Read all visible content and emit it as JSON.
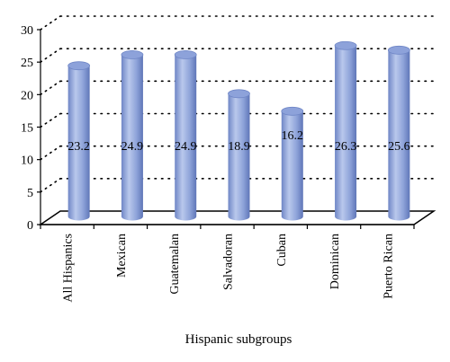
{
  "chart_data": {
    "type": "bar",
    "title": "",
    "xlabel": "Hispanic subgroups",
    "ylabel": "",
    "ylim": [
      0,
      30
    ],
    "yticks": [
      0,
      5,
      10,
      15,
      20,
      25,
      30
    ],
    "grid": true,
    "categories": [
      "All Hispanics",
      "Mexican",
      "Guatemalan",
      "Salvadoran",
      "Cuban",
      "Dominican",
      "Puerto Rican"
    ],
    "values": [
      23.2,
      24.9,
      24.9,
      18.9,
      16.2,
      26.3,
      25.6
    ],
    "value_labels": [
      "23.2",
      "24.9",
      "24.9",
      "18.9",
      "16.2",
      "26.3",
      "25.6"
    ],
    "bar_style": "3d-cylinder",
    "colors": {
      "bar_light": "#b9c8ec",
      "bar_mid": "#8ea3d9",
      "bar_dark": "#5f76b8",
      "grid": "#000000"
    }
  }
}
